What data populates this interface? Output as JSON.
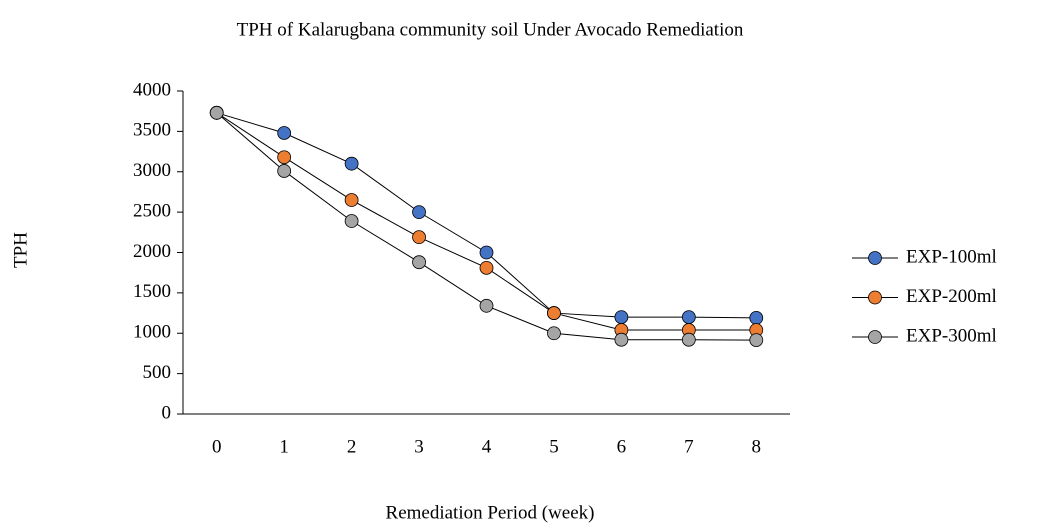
{
  "chart_data": {
    "type": "line",
    "title": "TPH of Kalarugbana community soil Under  Avocado Remediation",
    "xlabel": "Remediation Period (week)",
    "ylabel": "TPH",
    "x": [
      0,
      1,
      2,
      3,
      4,
      5,
      6,
      7,
      8
    ],
    "xlim": [
      -0.5,
      8.5
    ],
    "xticks": [
      0,
      1,
      2,
      3,
      4,
      5,
      6,
      7,
      8
    ],
    "ylim": [
      0,
      4000
    ],
    "yticks": [
      0,
      500,
      1000,
      1500,
      2000,
      2500,
      3000,
      3500,
      4000
    ],
    "grid": false,
    "legend": "right",
    "series": [
      {
        "name": "EXP-100ml",
        "color": "#4472c4",
        "values": [
          3730,
          3480,
          3100,
          2500,
          2000,
          1250,
          1200,
          1200,
          1190
        ]
      },
      {
        "name": "EXP-200ml",
        "color": "#ed7d31",
        "values": [
          3730,
          3180,
          2650,
          2190,
          1810,
          1250,
          1040,
          1040,
          1040
        ]
      },
      {
        "name": "EXP-300ml",
        "color": "#a5a5a5",
        "values": [
          3730,
          3010,
          2390,
          1880,
          1340,
          1000,
          920,
          920,
          915
        ]
      }
    ]
  }
}
